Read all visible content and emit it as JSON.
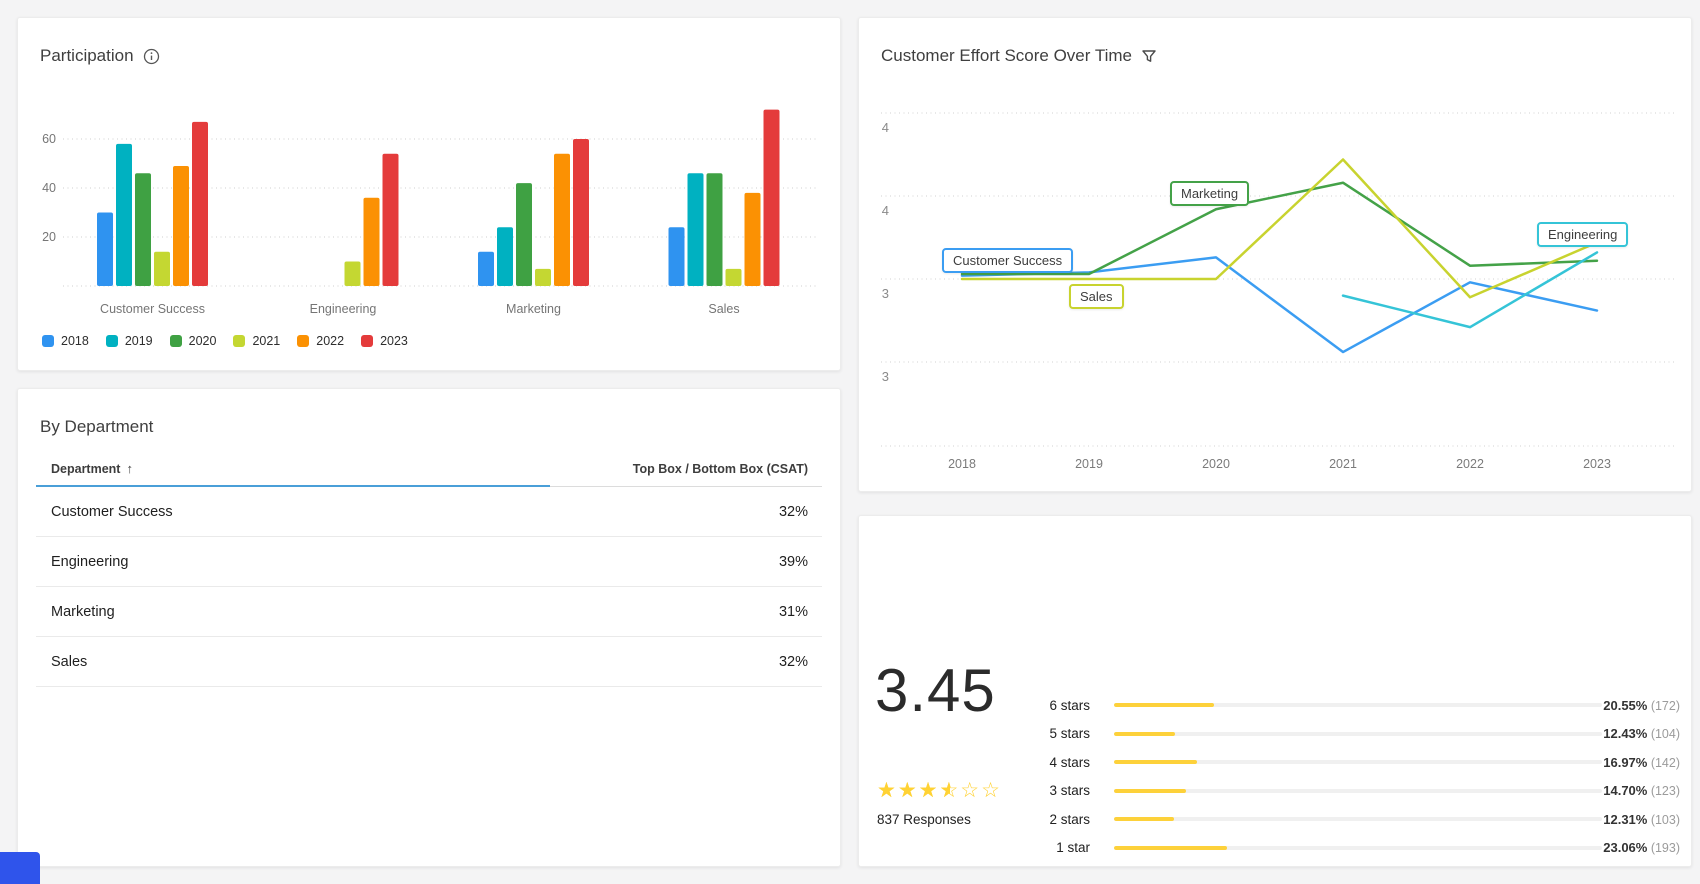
{
  "page": {
    "background": "#f4f4f5"
  },
  "participation_card": {
    "title": "Participation",
    "info_icon": "info-circle",
    "chart_data": {
      "type": "bar",
      "title": "Participation",
      "categories": [
        "Customer Success",
        "Engineering",
        "Marketing",
        "Sales"
      ],
      "series": [
        {
          "name": "2018",
          "color": "#2f93f0",
          "values": [
            30,
            null,
            14,
            24
          ]
        },
        {
          "name": "2019",
          "color": "#00b1c1",
          "values": [
            58,
            null,
            24,
            46
          ]
        },
        {
          "name": "2020",
          "color": "#3fa143",
          "values": [
            46,
            null,
            42,
            46
          ]
        },
        {
          "name": "2021",
          "color": "#c4d732",
          "values": [
            14,
            10,
            7,
            7
          ]
        },
        {
          "name": "2022",
          "color": "#fb9103",
          "values": [
            49,
            36,
            54,
            38
          ]
        },
        {
          "name": "2023",
          "color": "#e43b3b",
          "values": [
            67,
            54,
            60,
            72
          ]
        }
      ],
      "ylim": [
        0,
        80
      ],
      "yticks": [
        20,
        40,
        60
      ],
      "grid": "dotted-horizontal",
      "legend_position": "bottom"
    }
  },
  "department_card": {
    "title": "By Department",
    "table": {
      "columns": [
        "Department",
        "Top Box / Bottom Box (CSAT)"
      ],
      "sort_indicator": "↑",
      "sorted_column": "Department",
      "rows": [
        {
          "department": "Customer Success",
          "value": "32%"
        },
        {
          "department": "Engineering",
          "value": "39%"
        },
        {
          "department": "Marketing",
          "value": "31%"
        },
        {
          "department": "Sales",
          "value": "32%"
        }
      ]
    }
  },
  "ces_card": {
    "title": "Customer Effort Score Over Time",
    "filter_icon": "funnel",
    "chart_data": {
      "type": "line",
      "x": [
        2018,
        2019,
        2020,
        2021,
        2022,
        2023
      ],
      "yticks": [
        {
          "value": 4.0,
          "label": "4"
        },
        {
          "value": 3.5,
          "label": "4"
        },
        {
          "value": 3.0,
          "label": "3"
        },
        {
          "value": 2.5,
          "label": "3"
        }
      ],
      "ylim": [
        2.0,
        4.3
      ],
      "grid": "dotted-horizontal",
      "series": [
        {
          "name": "Customer Success",
          "color": "#3b9df2",
          "values": [
            3.02,
            3.04,
            3.13,
            2.56,
            2.98,
            2.81
          ]
        },
        {
          "name": "Marketing",
          "color": "#44a248",
          "values": [
            3.03,
            3.03,
            3.42,
            3.58,
            3.08,
            3.11
          ]
        },
        {
          "name": "Sales",
          "color": "#c8d32f",
          "values": [
            3.0,
            3.0,
            3.0,
            3.72,
            2.89,
            3.22
          ]
        },
        {
          "name": "Engineering",
          "color": "#35c4d7",
          "values": [
            null,
            null,
            null,
            2.9,
            2.71,
            3.16
          ]
        }
      ],
      "annotations": [
        "Customer Success",
        "Sales",
        "Marketing",
        "Engineering"
      ]
    }
  },
  "ratings_card": {
    "average": "3.45",
    "stars_filled": 3.5,
    "stars_total": 6,
    "responses": "837 Responses",
    "bar_color": "#fdd13a",
    "rows": [
      {
        "label": "6 stars",
        "percent": 20.55,
        "percent_label": "20.55%",
        "count_label": "(172)"
      },
      {
        "label": "5 stars",
        "percent": 12.43,
        "percent_label": "12.43%",
        "count_label": "(104)"
      },
      {
        "label": "4 stars",
        "percent": 16.97,
        "percent_label": "16.97%",
        "count_label": "(142)"
      },
      {
        "label": "3 stars",
        "percent": 14.7,
        "percent_label": "14.70%",
        "count_label": "(123)"
      },
      {
        "label": "2 stars",
        "percent": 12.31,
        "percent_label": "12.31%",
        "count_label": "(103)"
      },
      {
        "label": "1 star",
        "percent": 23.06,
        "percent_label": "23.06%",
        "count_label": "(193)"
      }
    ]
  }
}
